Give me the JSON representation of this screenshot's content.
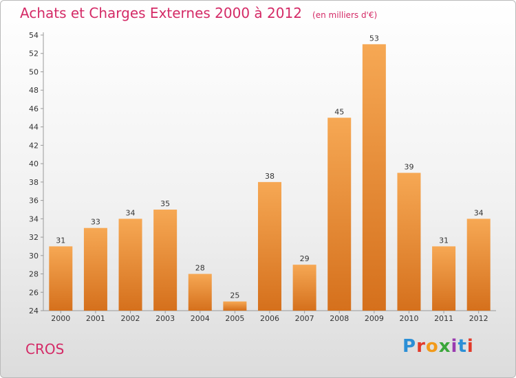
{
  "title": "Achats et Charges Externes 2000 à 2012",
  "subtitle": "(en milliers d'€)",
  "place": "CROS",
  "logo": {
    "text": "Proxiti",
    "colors": [
      "#2b8fd6",
      "#e23a2a",
      "#f29a1a",
      "#3aa63a",
      "#9a3ab0",
      "#2b8fd6",
      "#e23a2a"
    ]
  },
  "colors": {
    "title": "#d42a66",
    "bar_light": "#f6a854",
    "bar_dark": "#d5701c"
  },
  "chart_data": {
    "type": "bar",
    "categories": [
      "2000",
      "2001",
      "2002",
      "2003",
      "2004",
      "2005",
      "2006",
      "2007",
      "2008",
      "2009",
      "2010",
      "2011",
      "2012"
    ],
    "values": [
      31,
      33,
      34,
      35,
      28,
      25,
      38,
      29,
      45,
      53,
      39,
      31,
      34
    ],
    "ylim": [
      24,
      54
    ],
    "yticks": [
      24,
      26,
      28,
      30,
      32,
      34,
      36,
      38,
      40,
      42,
      44,
      46,
      48,
      50,
      52,
      54
    ],
    "grid": false,
    "data_labels": true
  }
}
